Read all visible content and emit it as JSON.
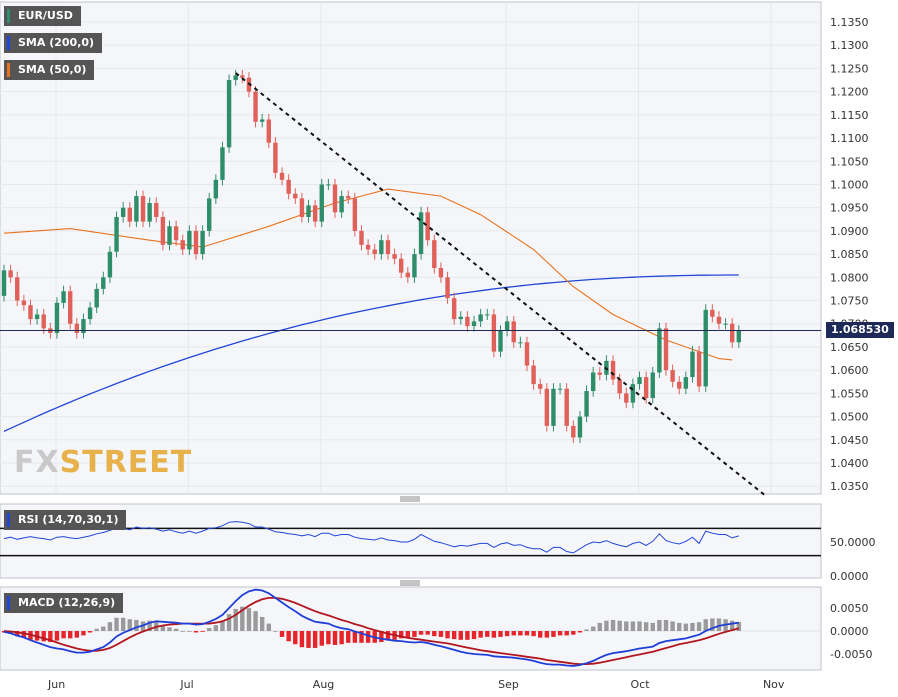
{
  "legend": {
    "main": "EUR/USD",
    "sma200": "SMA (200,0)",
    "sma50": "SMA (50,0)",
    "rsi": "RSI (14,70,30,1)",
    "macd": "MACD (12,26,9)"
  },
  "price_label": "1.068530",
  "logo": {
    "part1": "FX",
    "part2": "STREET"
  },
  "colors": {
    "up": "#2f8e6a",
    "down": "#e0605a",
    "sma200": "#2146d6",
    "sma50": "#e8731e",
    "macd_line": "#1f3fd8",
    "signal_line": "#b2171f",
    "hist_pos": "#9a9a9a",
    "hist_neg": "#e6242a"
  },
  "chart_data": [
    {
      "type": "candlestick",
      "title": "EUR/USD",
      "ylim": [
        1.0325,
        1.138
      ],
      "yticks": [
        "1.1350",
        "1.1300",
        "1.1250",
        "1.1200",
        "1.1150",
        "1.1100",
        "1.1050",
        "1.1000",
        "1.0950",
        "1.0900",
        "1.0850",
        "1.0800",
        "1.0750",
        "1.0700",
        "1.0650",
        "1.0600",
        "1.0550",
        "1.0500",
        "1.0450",
        "1.0400",
        "1.0350"
      ],
      "x_labels": [
        "Jun",
        "Jul",
        "Aug",
        "Sep",
        "Oct",
        "Nov"
      ],
      "last_price": 1.06853,
      "close": [
        1.0815,
        1.08,
        1.075,
        1.074,
        1.071,
        1.072,
        1.069,
        1.068,
        1.0745,
        1.077,
        1.07,
        1.068,
        1.071,
        1.0735,
        1.0775,
        1.08,
        1.0855,
        1.093,
        1.095,
        1.092,
        1.0975,
        1.092,
        1.096,
        1.093,
        1.087,
        1.091,
        1.088,
        1.086,
        1.09,
        1.085,
        1.09,
        1.097,
        1.101,
        1.108,
        1.1225,
        1.1235,
        1.123,
        1.12,
        1.1135,
        1.114,
        1.109,
        1.1025,
        1.101,
        1.098,
        1.097,
        1.093,
        1.0955,
        1.092,
        1.1,
        1.1,
        1.094,
        1.0975,
        1.097,
        1.09,
        1.087,
        1.086,
        1.085,
        1.088,
        1.085,
        1.084,
        1.081,
        1.08,
        1.085,
        1.094,
        1.088,
        1.082,
        1.08,
        1.0755,
        1.071,
        1.0715,
        1.0695,
        1.0705,
        1.072,
        1.072,
        1.064,
        1.0685,
        1.0705,
        1.066,
        1.066,
        1.061,
        1.057,
        1.056,
        1.048,
        1.056,
        1.056,
        1.048,
        1.0455,
        1.05,
        1.0555,
        1.0595,
        1.059,
        1.062,
        1.058,
        1.055,
        1.053,
        1.057,
        1.0585,
        1.054,
        1.0595,
        1.069,
        1.06,
        1.0575,
        1.056,
        1.0585,
        1.064,
        1.0565,
        1.073,
        1.0715,
        1.07,
        1.07,
        1.066,
        1.0685
      ],
      "open": [
        1.076,
        1.0815,
        1.08,
        1.075,
        1.074,
        1.071,
        1.072,
        1.069,
        1.068,
        1.0745,
        1.077,
        1.07,
        1.068,
        1.071,
        1.0735,
        1.0775,
        1.08,
        1.0855,
        1.093,
        1.095,
        1.092,
        1.0975,
        1.092,
        1.096,
        1.093,
        1.087,
        1.091,
        1.088,
        1.086,
        1.09,
        1.085,
        1.09,
        1.097,
        1.101,
        1.108,
        1.1225,
        1.1235,
        1.123,
        1.12,
        1.1135,
        1.114,
        1.109,
        1.1025,
        1.101,
        1.098,
        1.097,
        1.093,
        1.0955,
        1.092,
        1.1,
        1.1,
        1.094,
        1.0975,
        1.097,
        1.09,
        1.087,
        1.086,
        1.085,
        1.088,
        1.085,
        1.084,
        1.081,
        1.08,
        1.085,
        1.094,
        1.088,
        1.082,
        1.08,
        1.0755,
        1.071,
        1.0715,
        1.0695,
        1.0705,
        1.072,
        1.072,
        1.064,
        1.0685,
        1.0705,
        1.066,
        1.066,
        1.061,
        1.057,
        1.056,
        1.048,
        1.056,
        1.056,
        1.048,
        1.0455,
        1.05,
        1.0555,
        1.0595,
        1.059,
        1.062,
        1.058,
        1.055,
        1.053,
        1.057,
        1.0585,
        1.054,
        1.0595,
        1.069,
        1.06,
        1.0575,
        1.056,
        1.0585,
        1.064,
        1.0565,
        1.073,
        1.0715,
        1.07,
        1.07,
        1.066
      ],
      "sma200": [
        1.0468,
        1.0805
      ],
      "sma50_points": [
        [
          0,
          1.0895
        ],
        [
          10,
          1.0905
        ],
        [
          22,
          1.088
        ],
        [
          30,
          1.0865
        ],
        [
          40,
          1.091
        ],
        [
          50,
          1.096
        ],
        [
          58,
          1.099
        ],
        [
          66,
          1.0975
        ],
        [
          72,
          1.0935
        ],
        [
          80,
          1.086
        ],
        [
          86,
          1.078
        ],
        [
          92,
          1.072
        ],
        [
          100,
          1.0665
        ],
        [
          108,
          1.0625
        ],
        [
          110,
          1.0622
        ]
      ],
      "trendline": [
        [
          1.124,
          35
        ],
        [
          1.033,
          115
        ]
      ]
    },
    {
      "type": "line",
      "title": "RSI (14,70,30,1)",
      "yticks": [
        "50.0000",
        "0.0000"
      ],
      "levels": [
        70,
        30
      ],
      "ylim": [
        0,
        100
      ],
      "values": [
        55,
        57,
        54,
        56,
        58,
        56,
        55,
        53,
        57,
        58,
        56,
        55,
        57,
        59,
        62,
        64,
        67,
        71,
        70,
        68,
        72,
        70,
        71,
        69,
        66,
        68,
        65,
        63,
        66,
        63,
        66,
        70,
        71,
        74,
        79,
        80,
        79,
        77,
        72,
        72,
        69,
        65,
        64,
        62,
        61,
        59,
        61,
        58,
        63,
        63,
        59,
        61,
        61,
        57,
        55,
        54,
        53,
        56,
        53,
        52,
        50,
        50,
        54,
        61,
        56,
        51,
        49,
        46,
        43,
        45,
        44,
        46,
        48,
        48,
        42,
        47,
        49,
        45,
        46,
        42,
        40,
        40,
        35,
        42,
        42,
        36,
        34,
        40,
        46,
        50,
        49,
        52,
        48,
        45,
        43,
        48,
        50,
        45,
        51,
        62,
        52,
        49,
        47,
        51,
        57,
        48,
        66,
        63,
        61,
        61,
        56,
        59
      ]
    },
    {
      "type": "line+bar",
      "title": "MACD (12,26,9)",
      "yticks": [
        "0.0050",
        "0.0000",
        "-0.0050"
      ],
      "ylim": [
        -0.0075,
        0.0075
      ],
      "macd": [
        -0.0002,
        -0.0005,
        -0.001,
        -0.0014,
        -0.002,
        -0.0025,
        -0.003,
        -0.0035,
        -0.0038,
        -0.004,
        -0.0044,
        -0.0047,
        -0.0047,
        -0.0045,
        -0.004,
        -0.0035,
        -0.0025,
        -0.0012,
        -0.0004,
        0.0002,
        0.0008,
        0.0012,
        0.0018,
        0.0021,
        0.002,
        0.0019,
        0.0018,
        0.0016,
        0.0016,
        0.0014,
        0.0015,
        0.002,
        0.0026,
        0.0035,
        0.005,
        0.0065,
        0.0078,
        0.0086,
        0.009,
        0.0088,
        0.0082,
        0.0072,
        0.0062,
        0.0052,
        0.0043,
        0.0033,
        0.0026,
        0.002,
        0.0018,
        0.0016,
        0.001,
        0.0006,
        0.0004,
        -0.0001,
        -0.0005,
        -0.001,
        -0.0014,
        -0.0017,
        -0.0019,
        -0.0021,
        -0.0022,
        -0.0024,
        -0.0025,
        -0.0024,
        -0.0026,
        -0.003,
        -0.0033,
        -0.0037,
        -0.0041,
        -0.0045,
        -0.0048,
        -0.005,
        -0.0051,
        -0.0052,
        -0.0055,
        -0.0056,
        -0.0057,
        -0.0058,
        -0.006,
        -0.0062,
        -0.0065,
        -0.0069,
        -0.0072,
        -0.0073,
        -0.0073,
        -0.0075,
        -0.0076,
        -0.0074,
        -0.007,
        -0.0065,
        -0.0058,
        -0.0052,
        -0.0048,
        -0.0046,
        -0.0044,
        -0.0041,
        -0.0038,
        -0.0036,
        -0.0034,
        -0.0026,
        -0.0022,
        -0.002,
        -0.0018,
        -0.0016,
        -0.0012,
        -0.0008,
        0.0,
        0.0006,
        0.0011,
        0.0014,
        0.0016,
        0.0018
      ],
      "signal": [
        0.0,
        -0.0001,
        -0.0003,
        -0.0005,
        -0.0008,
        -0.0012,
        -0.0016,
        -0.002,
        -0.0025,
        -0.003,
        -0.0034,
        -0.0038,
        -0.0041,
        -0.0043,
        -0.0043,
        -0.0041,
        -0.0037,
        -0.003,
        -0.0022,
        -0.0014,
        -0.0007,
        -0.0001,
        0.0004,
        0.0009,
        0.0012,
        0.0014,
        0.0015,
        0.0016,
        0.0016,
        0.0016,
        0.0016,
        0.0016,
        0.0018,
        0.0021,
        0.0027,
        0.0035,
        0.0045,
        0.0055,
        0.0063,
        0.0069,
        0.0072,
        0.0072,
        0.007,
        0.0066,
        0.0061,
        0.0055,
        0.0049,
        0.0043,
        0.0038,
        0.0034,
        0.0029,
        0.0024,
        0.002,
        0.0015,
        0.0011,
        0.0006,
        0.0002,
        -0.0002,
        -0.0006,
        -0.0009,
        -0.0012,
        -0.0015,
        -0.0017,
        -0.0019,
        -0.0021,
        -0.0023,
        -0.0025,
        -0.0027,
        -0.003,
        -0.0033,
        -0.0036,
        -0.0039,
        -0.0042,
        -0.0044,
        -0.0046,
        -0.0048,
        -0.005,
        -0.0052,
        -0.0054,
        -0.0056,
        -0.0058,
        -0.006,
        -0.0063,
        -0.0065,
        -0.0067,
        -0.0069,
        -0.0071,
        -0.0072,
        -0.0072,
        -0.0071,
        -0.0069,
        -0.0066,
        -0.0063,
        -0.006,
        -0.0057,
        -0.0054,
        -0.0051,
        -0.0048,
        -0.0045,
        -0.0041,
        -0.0037,
        -0.0033,
        -0.0029,
        -0.0026,
        -0.0023,
        -0.002,
        -0.0016,
        -0.0011,
        -0.0006,
        -0.0002,
        0.0002,
        0.0006
      ]
    }
  ]
}
